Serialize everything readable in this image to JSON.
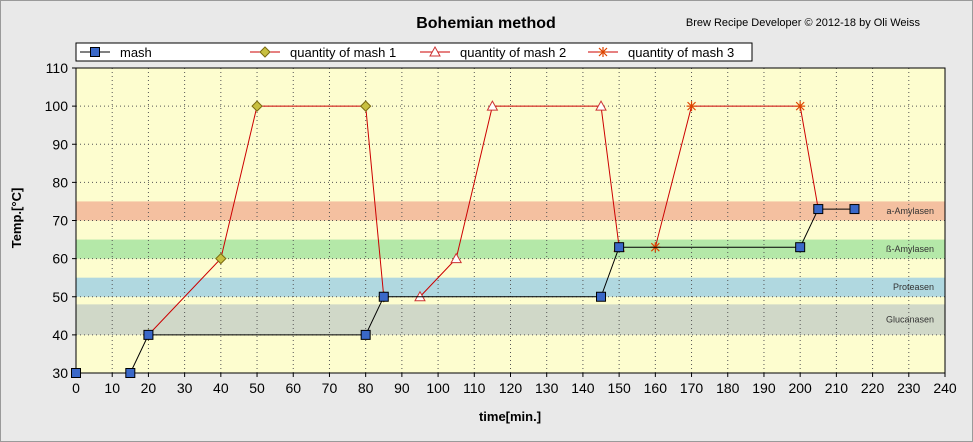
{
  "header": {
    "title": "Bohemian method",
    "credit": "Brew Recipe Developer © 2012-18 by Oli Weiss"
  },
  "colors": {
    "background": "#e9e9e9",
    "plot_area": "#fdfdcf",
    "mash": "#000000",
    "mash_marker": "#3a68c8",
    "decoctions": "#cc0000"
  },
  "chart_data": {
    "type": "line",
    "xlabel": "time[min.]",
    "ylabel": "Temp.[°C]",
    "xlim": [
      0,
      240
    ],
    "ylim": [
      30,
      110
    ],
    "x_ticks": [
      0,
      10,
      20,
      30,
      40,
      50,
      60,
      70,
      80,
      90,
      100,
      110,
      120,
      130,
      140,
      150,
      160,
      170,
      180,
      190,
      200,
      210,
      220,
      230,
      240
    ],
    "y_ticks": [
      30,
      40,
      50,
      60,
      70,
      80,
      90,
      100,
      110
    ],
    "grid": true,
    "legend_position": "top",
    "series": [
      {
        "name": "mash",
        "marker": "square",
        "color": "#000000",
        "marker_color": "#3a68c8",
        "x": [
          0,
          15,
          20,
          80,
          85,
          145,
          150,
          200,
          205,
          215
        ],
        "y": [
          30,
          30,
          40,
          40,
          50,
          50,
          63,
          63,
          73,
          73
        ]
      },
      {
        "name": "quantity of mash 1",
        "marker": "diamond",
        "color": "#cc0000",
        "marker_color": "#c8c040",
        "x": [
          20,
          40,
          50,
          80,
          85
        ],
        "y": [
          40,
          60,
          100,
          100,
          50
        ]
      },
      {
        "name": "quantity of mash 2",
        "marker": "triangle",
        "color": "#cc0000",
        "marker_color": "#ffffff",
        "x": [
          95,
          105,
          115,
          145,
          150
        ],
        "y": [
          50,
          60,
          100,
          100,
          63
        ]
      },
      {
        "name": "quantity of mash 3",
        "marker": "asterisk",
        "color": "#cc0000",
        "marker_color": "#dd4400",
        "x": [
          160,
          170,
          200,
          205
        ],
        "y": [
          63,
          100,
          100,
          73
        ]
      }
    ],
    "bands": [
      {
        "label": "a-Amylasen",
        "y0": 70,
        "y1": 75,
        "color": "#f4c0a0"
      },
      {
        "label": "ß-Amylasen",
        "y0": 60,
        "y1": 65,
        "color": "#b4e8a8"
      },
      {
        "label": "Proteasen",
        "y0": 50,
        "y1": 55,
        "color": "#b0d8e0"
      },
      {
        "label": "Glucanasen",
        "y0": 40,
        "y1": 48,
        "color": "#d0d8c8"
      }
    ]
  }
}
